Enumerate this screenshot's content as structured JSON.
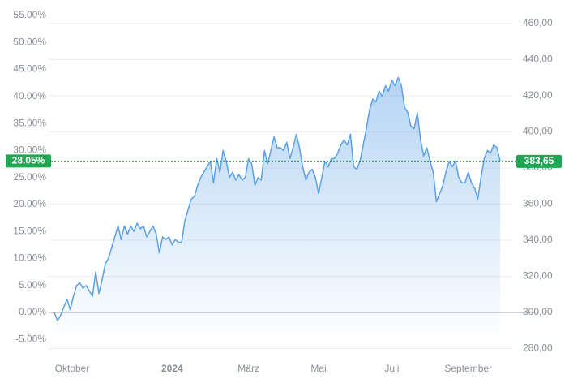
{
  "chart_data": {
    "type": "line",
    "values": [
      0,
      -1.5,
      -0.5,
      1,
      2.5,
      0.5,
      3,
      5,
      5.5,
      4.5,
      5,
      4,
      3,
      7.5,
      3.5,
      6,
      9,
      10,
      12,
      14,
      16,
      13.5,
      16,
      14.5,
      16,
      15,
      16.5,
      15.5,
      16,
      14,
      15,
      16,
      14.5,
      11,
      14,
      13.5,
      14,
      12.5,
      13.5,
      13,
      13,
      17,
      19,
      21,
      21.5,
      23.5,
      25,
      26,
      27,
      28,
      24,
      28.5,
      26,
      30,
      28,
      25,
      26,
      24.5,
      25.5,
      24.5,
      25,
      28.5,
      27.5,
      23.5,
      25,
      24.5,
      30,
      27.5,
      30,
      32.5,
      30.5,
      30.5,
      30,
      31.5,
      28.5,
      30.5,
      33,
      30.5,
      27,
      24.5,
      26,
      26.5,
      25,
      22,
      25,
      28,
      27,
      28.5,
      28.5,
      29.5,
      31,
      32,
      31,
      33,
      27,
      26.5,
      28,
      31,
      34,
      37.5,
      39.5,
      39,
      41,
      40,
      42,
      41,
      43,
      42,
      43.5,
      42,
      38,
      37,
      34.5,
      34,
      37,
      32,
      29,
      30.5,
      28,
      26,
      20.5,
      22,
      23.5,
      26,
      28,
      27,
      28,
      25,
      24,
      24,
      26,
      24,
      23,
      21,
      25,
      28.5,
      30,
      29.5,
      31,
      30.5,
      28.05
    ],
    "color": "#5aa0e6",
    "xlim": [
      0,
      140
    ],
    "xticks": [
      {
        "value": 5.6,
        "label": "Oktober"
      },
      {
        "value": 37,
        "label": "2024"
      },
      {
        "value": 61,
        "label": "März"
      },
      {
        "value": 83,
        "label": "Mai"
      },
      {
        "value": 106,
        "label": "Juli"
      },
      {
        "value": 130,
        "label": "September"
      }
    ],
    "ylim": [
      -8.26,
      56.35
    ],
    "yticks": [
      {
        "value": -5,
        "label": "-5.00%"
      },
      {
        "value": 0,
        "label": "0.00%"
      },
      {
        "value": 5,
        "label": "5.00%"
      },
      {
        "value": 10,
        "label": "10.00%"
      },
      {
        "value": 15,
        "label": "15.00%"
      },
      {
        "value": 20,
        "label": "20.00%"
      },
      {
        "value": 25,
        "label": "25.00%"
      },
      {
        "value": 30,
        "label": "30.00%"
      },
      {
        "value": 35,
        "label": "35.00%"
      },
      {
        "value": 40,
        "label": "40.00%"
      },
      {
        "value": 45,
        "label": "45.00%"
      },
      {
        "value": 50,
        "label": "50.00%"
      },
      {
        "value": 55,
        "label": "55.00%"
      }
    ],
    "y2lim": [
      275.3,
      468.5
    ],
    "y2ticks": [
      {
        "value": 280,
        "label": "280,00"
      },
      {
        "value": 300,
        "label": "300,00"
      },
      {
        "value": 320,
        "label": "320,00"
      },
      {
        "value": 340,
        "label": "340,00"
      },
      {
        "value": 360,
        "label": "360,00"
      },
      {
        "value": 380,
        "label": "380,00"
      },
      {
        "value": 400,
        "label": "400,00"
      },
      {
        "value": 420,
        "label": "420,00"
      },
      {
        "value": 440,
        "label": "440,00"
      },
      {
        "value": 460,
        "label": "460,00"
      }
    ],
    "grid": true,
    "markers": [
      {
        "axis": "y",
        "value": 28.05,
        "label": "28.05%",
        "color": "#1ea650"
      },
      {
        "axis": "y2",
        "value": 383.65,
        "label": "383,65",
        "color": "#1ea650"
      }
    ]
  }
}
